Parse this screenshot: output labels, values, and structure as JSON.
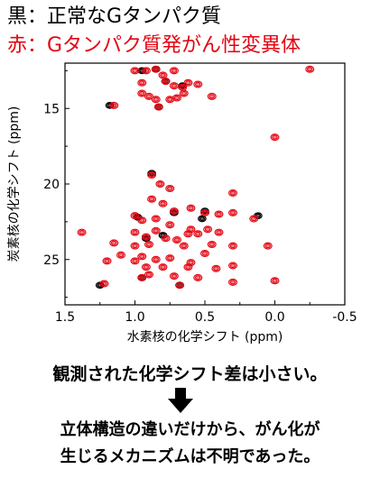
{
  "legend": {
    "black": "黒：正常なGタンパク質",
    "red": "赤：Gタンパク質発がん性変異体"
  },
  "colors": {
    "normal": "#000000",
    "mutant": "#e30613"
  },
  "chart_data": {
    "type": "scatter",
    "title": "",
    "xlabel": "水素核の化学シフト (ppm)",
    "ylabel": "炭素核の化学シフト (ppm)",
    "xlim": [
      1.5,
      -0.5
    ],
    "ylim": [
      12,
      28
    ],
    "xticks": [
      "1.5",
      "1.0",
      "0.5",
      "0.0",
      "-0.5"
    ],
    "yticks": [
      "15",
      "20",
      "25"
    ],
    "x_reversed": true,
    "y_reversed": true,
    "grid": false,
    "series": [
      {
        "name": "正常なGタンパク質",
        "color": "#000000",
        "points": [
          [
            0.95,
            12.5
          ],
          [
            0.85,
            12.4
          ],
          [
            0.78,
            13.2
          ],
          [
            0.66,
            13.5
          ],
          [
            1.18,
            14.8
          ],
          [
            0.83,
            14.9
          ],
          [
            0.88,
            19.3
          ],
          [
            0.72,
            21.9
          ],
          [
            0.5,
            21.8
          ],
          [
            0.98,
            22.2
          ],
          [
            0.8,
            23.4
          ],
          [
            0.92,
            23.6
          ],
          [
            1.25,
            26.7
          ],
          [
            0.95,
            26.2
          ],
          [
            0.68,
            26.7
          ],
          [
            0.52,
            22.3
          ],
          [
            0.12,
            22.1
          ]
        ]
      },
      {
        "name": "Gタンパク質発がん性変異体",
        "color": "#e30613",
        "points": [
          [
            1.0,
            12.5
          ],
          [
            0.92,
            12.5
          ],
          [
            0.85,
            12.4
          ],
          [
            0.8,
            12.8
          ],
          [
            0.72,
            12.5
          ],
          [
            -0.25,
            12.4
          ],
          [
            0.95,
            13.3
          ],
          [
            0.78,
            13.2
          ],
          [
            0.72,
            13.5
          ],
          [
            0.66,
            13.6
          ],
          [
            0.62,
            13.3
          ],
          [
            0.55,
            13.4
          ],
          [
            0.9,
            14.2
          ],
          [
            0.85,
            14.4
          ],
          [
            0.75,
            14.4
          ],
          [
            0.7,
            14.3
          ],
          [
            0.65,
            14.0
          ],
          [
            1.15,
            14.8
          ],
          [
            0.83,
            14.9
          ],
          [
            0.95,
            14.0
          ],
          [
            0.45,
            14.2
          ],
          [
            0.0,
            16.9
          ],
          [
            0.88,
            19.4
          ],
          [
            0.82,
            20.0
          ],
          [
            0.75,
            20.3
          ],
          [
            0.3,
            20.6
          ],
          [
            0.88,
            21.0
          ],
          [
            0.8,
            21.3
          ],
          [
            0.72,
            21.8
          ],
          [
            0.6,
            21.6
          ],
          [
            0.5,
            21.9
          ],
          [
            0.4,
            22.0
          ],
          [
            0.3,
            21.9
          ],
          [
            1.0,
            22.1
          ],
          [
            0.95,
            22.4
          ],
          [
            0.85,
            22.3
          ],
          [
            0.15,
            22.3
          ],
          [
            0.75,
            22.7
          ],
          [
            0.6,
            23.0
          ],
          [
            0.48,
            23.0
          ],
          [
            1.38,
            23.2
          ],
          [
            1.0,
            23.2
          ],
          [
            0.92,
            23.5
          ],
          [
            0.85,
            23.1
          ],
          [
            0.78,
            23.6
          ],
          [
            0.7,
            23.7
          ],
          [
            0.62,
            23.3
          ],
          [
            0.55,
            23.3
          ],
          [
            0.4,
            23.2
          ],
          [
            1.15,
            23.9
          ],
          [
            1.0,
            24.1
          ],
          [
            0.9,
            24.0
          ],
          [
            0.65,
            24.1
          ],
          [
            0.45,
            24.0
          ],
          [
            0.3,
            24.1
          ],
          [
            0.05,
            24.1
          ],
          [
            1.1,
            24.7
          ],
          [
            0.95,
            24.8
          ],
          [
            0.85,
            25.0
          ],
          [
            0.75,
            24.9
          ],
          [
            0.6,
            25.2
          ],
          [
            0.5,
            24.6
          ],
          [
            1.2,
            25.1
          ],
          [
            1.0,
            25.1
          ],
          [
            0.92,
            25.5
          ],
          [
            0.8,
            25.5
          ],
          [
            0.62,
            25.5
          ],
          [
            0.42,
            25.6
          ],
          [
            0.3,
            25.4
          ],
          [
            0.9,
            26.0
          ],
          [
            0.72,
            26.1
          ],
          [
            0.55,
            26.2
          ],
          [
            0.3,
            26.5
          ],
          [
            0.0,
            26.4
          ],
          [
            1.22,
            26.6
          ],
          [
            0.95,
            26.2
          ],
          [
            0.68,
            26.7
          ]
        ]
      }
    ]
  },
  "captions": {
    "observation": "観測された化学シフト差は小さい。",
    "conclusion_line1": "立体構造の違いだけから、がん化が",
    "conclusion_line2": "生じるメカニズムは不明であった。"
  }
}
